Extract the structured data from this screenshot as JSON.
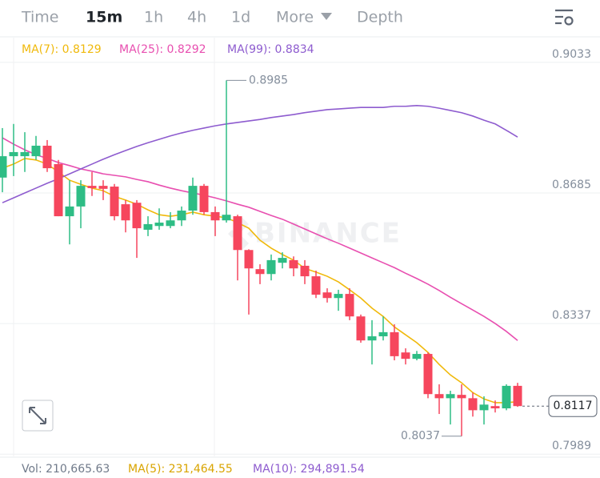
{
  "tabs": [
    "Time",
    "15m",
    "1h",
    "4h",
    "1d",
    "More",
    "Depth"
  ],
  "chart_data": {
    "type": "candlestick",
    "up_color": "#2ebd85",
    "down_color": "#f6465d",
    "watermark": "BINANCE",
    "ylim": [
      0.7983,
      0.9099
    ],
    "yticks": [
      0.9033,
      0.8685,
      0.8337,
      0.7989
    ],
    "grid": true,
    "high_label": "0.8985",
    "low_label": "0.8037",
    "last_label": "0.8117",
    "open": [
      0.8726,
      0.8783,
      0.8783,
      0.8783,
      0.8811,
      0.8762,
      0.8623,
      0.8649,
      0.8704,
      0.8704,
      0.8702,
      0.8655,
      0.8659,
      0.8587,
      0.8597,
      0.8597,
      0.8612,
      0.8638,
      0.8704,
      0.8634,
      0.8612,
      0.8623,
      0.8533,
      0.8482,
      0.8469,
      0.8499,
      0.8506,
      0.8491,
      0.8463,
      0.842,
      0.8405,
      0.8416,
      0.8356,
      0.8292,
      0.8303,
      0.8314,
      0.826,
      0.8243,
      0.8256,
      0.8149,
      0.8138,
      0.8147,
      0.8138,
      0.8106,
      0.8117,
      0.8111,
      0.8171
    ],
    "high": [
      0.8858,
      0.8869,
      0.8847,
      0.8837,
      0.8826,
      0.8773,
      0.8719,
      0.8719,
      0.8741,
      0.8719,
      0.8709,
      0.8666,
      0.8666,
      0.8623,
      0.8644,
      0.8634,
      0.8649,
      0.8726,
      0.8709,
      0.8649,
      0.8985,
      0.8627,
      0.8535,
      0.8495,
      0.8521,
      0.8527,
      0.8516,
      0.8506,
      0.8478,
      0.8431,
      0.8427,
      0.8431,
      0.8361,
      0.8346,
      0.8356,
      0.8335,
      0.8271,
      0.8264,
      0.826,
      0.8175,
      0.8158,
      0.8175,
      0.8153,
      0.8143,
      0.8132,
      0.8175,
      0.8179
    ],
    "low": [
      0.8687,
      0.873,
      0.8741,
      0.8773,
      0.8741,
      0.8623,
      0.8548,
      0.8591,
      0.8677,
      0.8666,
      0.8612,
      0.858,
      0.8512,
      0.857,
      0.8587,
      0.8591,
      0.8597,
      0.8627,
      0.8627,
      0.857,
      0.8606,
      0.8452,
      0.8361,
      0.8442,
      0.8452,
      0.8484,
      0.8463,
      0.8442,
      0.8405,
      0.8393,
      0.8371,
      0.8346,
      0.8286,
      0.8228,
      0.8292,
      0.8239,
      0.8228,
      0.8239,
      0.8138,
      0.8096,
      0.8068,
      0.8037,
      0.8089,
      0.8068,
      0.81,
      0.8106,
      0.8115
    ],
    "close": [
      0.8783,
      0.8794,
      0.8794,
      0.8811,
      0.8751,
      0.8623,
      0.8649,
      0.8704,
      0.8698,
      0.8696,
      0.8623,
      0.8612,
      0.8591,
      0.8602,
      0.8606,
      0.8612,
      0.8638,
      0.8704,
      0.8634,
      0.8612,
      0.8627,
      0.8533,
      0.8484,
      0.8469,
      0.8506,
      0.8512,
      0.8484,
      0.8463,
      0.8414,
      0.8405,
      0.8416,
      0.8356,
      0.8292,
      0.8303,
      0.8314,
      0.825,
      0.8243,
      0.8256,
      0.8149,
      0.8138,
      0.8149,
      0.8138,
      0.8106,
      0.8121,
      0.8111,
      0.8171,
      0.8117
    ],
    "series": [
      {
        "name": "MA(7): 0.8129",
        "color": "#f0b90b",
        "values": [
          0.8751,
          0.8762,
          0.8777,
          0.8773,
          0.8762,
          0.8741,
          0.8719,
          0.8708,
          0.8698,
          0.8691,
          0.8676,
          0.8666,
          0.8655,
          0.864,
          0.8627,
          0.8623,
          0.8627,
          0.8634,
          0.8627,
          0.8623,
          0.8619,
          0.8606,
          0.8591,
          0.8559,
          0.8538,
          0.8521,
          0.8506,
          0.8484,
          0.8474,
          0.8463,
          0.8448,
          0.8427,
          0.8405,
          0.8378,
          0.8356,
          0.8328,
          0.8307,
          0.8286,
          0.826,
          0.8228,
          0.82,
          0.8179,
          0.8153,
          0.8136,
          0.8126,
          0.8126,
          0.8129
        ]
      },
      {
        "name": "MA(25): 0.8292",
        "color": "#e84fb0",
        "values": [
          0.8832,
          0.8815,
          0.88,
          0.8787,
          0.8777,
          0.8766,
          0.8758,
          0.8749,
          0.8743,
          0.8736,
          0.8732,
          0.8728,
          0.8721,
          0.8715,
          0.8706,
          0.8698,
          0.8691,
          0.8685,
          0.8679,
          0.8672,
          0.8664,
          0.8655,
          0.8647,
          0.8636,
          0.8625,
          0.8615,
          0.8602,
          0.8589,
          0.8576,
          0.8563,
          0.8551,
          0.8538,
          0.8525,
          0.8512,
          0.8499,
          0.8486,
          0.8471,
          0.8457,
          0.8442,
          0.8425,
          0.8407,
          0.839,
          0.8373,
          0.8356,
          0.8337,
          0.8316,
          0.8292
        ]
      },
      {
        "name": "MA(99): 0.8834",
        "color": "#8e5ccf",
        "values": [
          0.8659,
          0.8672,
          0.8685,
          0.8698,
          0.8711,
          0.8723,
          0.8736,
          0.8749,
          0.8762,
          0.8775,
          0.8787,
          0.8798,
          0.8809,
          0.8819,
          0.8828,
          0.8837,
          0.8845,
          0.8852,
          0.8858,
          0.8864,
          0.8869,
          0.8873,
          0.8877,
          0.8881,
          0.8886,
          0.889,
          0.8894,
          0.8899,
          0.8903,
          0.8907,
          0.8909,
          0.8911,
          0.8913,
          0.8913,
          0.8913,
          0.8916,
          0.8916,
          0.8918,
          0.8916,
          0.8911,
          0.8905,
          0.8899,
          0.889,
          0.8879,
          0.8869,
          0.8852,
          0.8834
        ]
      }
    ]
  },
  "volume_bar": [
    "Vol: 210,665.63",
    "MA(5): 231,464.55",
    "MA(10): 294,891.54"
  ]
}
